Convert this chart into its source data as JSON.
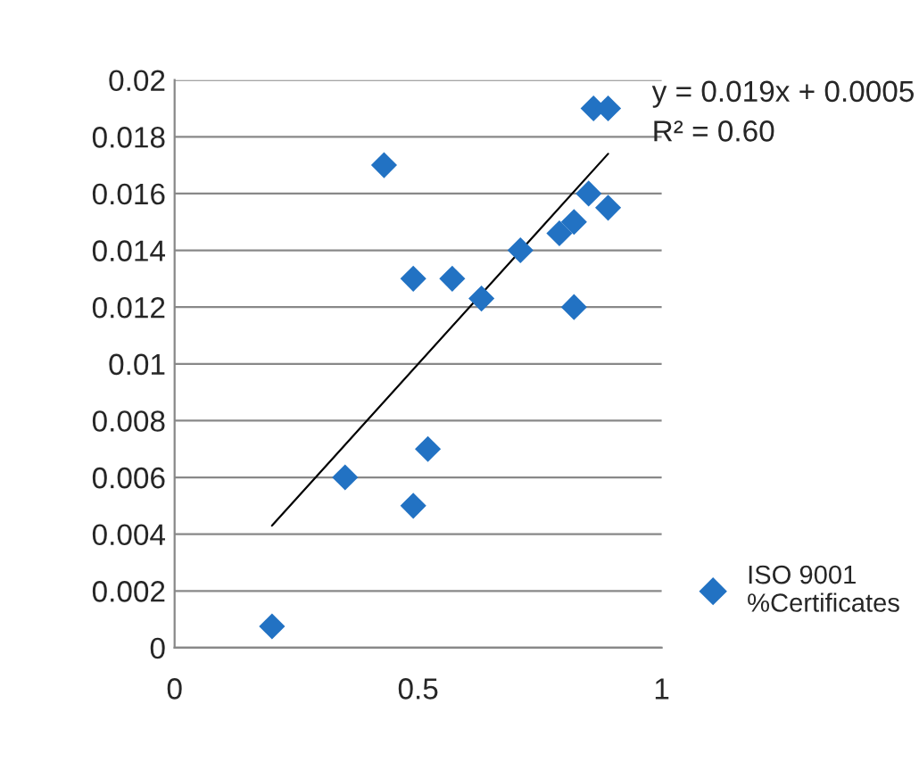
{
  "chart_data": {
    "type": "scatter",
    "x": [
      0.2,
      0.35,
      0.43,
      0.49,
      0.49,
      0.52,
      0.57,
      0.63,
      0.71,
      0.79,
      0.82,
      0.82,
      0.85,
      0.89,
      0.86,
      0.89
    ],
    "series": [
      {
        "name": "ISO 9001 %Certificates",
        "color": "#2272c3",
        "marker": "diamond",
        "values": [
          0.00075,
          0.006,
          0.017,
          0.013,
          0.005,
          0.007,
          0.013,
          0.0123,
          0.014,
          0.0146,
          0.015,
          0.012,
          0.016,
          0.0155,
          0.019,
          0.019
        ]
      },
      {
        "type": "line",
        "color": "#000000",
        "x": [
          0.2,
          0.89
        ],
        "values": [
          0.0043,
          0.0174
        ]
      }
    ],
    "annotations": [
      "y = 0.019x + 0.0005",
      "R² = 0.60"
    ],
    "xlim": [
      0,
      1
    ],
    "xticks": [
      0,
      0.5,
      1
    ],
    "ylim": [
      0,
      0.02
    ],
    "yticks": [
      0,
      0.002,
      0.004,
      0.006,
      0.008,
      0.01,
      0.012,
      0.014,
      0.016,
      0.018,
      0.02
    ],
    "grid": "y",
    "legend": "right"
  }
}
